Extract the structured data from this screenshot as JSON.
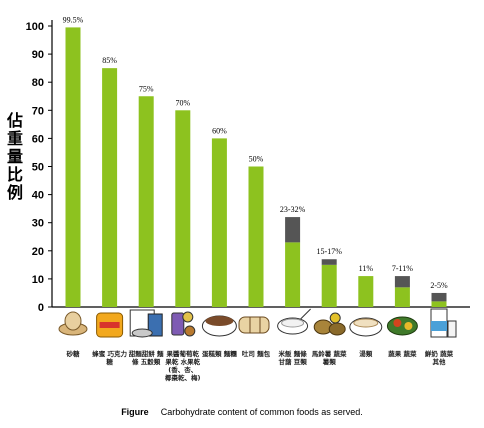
{
  "chart_data": {
    "type": "bar",
    "ylabel": "佔重量比例",
    "ylim": [
      0,
      100
    ],
    "yticks": [
      0,
      10,
      20,
      30,
      40,
      50,
      60,
      70,
      80,
      90,
      100
    ],
    "categories": [
      "砂糖",
      "蜂蜜 巧克力糖",
      "甜麵甜餅 麵條 五穀類",
      "果醬葡萄乾 果乾 水果乾 (香、杏、 椰棗乾、梅)",
      "蛋糕類 麵糰",
      "吐司 麵包",
      "米飯 麵條 甘藷 豆類",
      "馬鈴薯 蔬菜 薯類",
      "湯類",
      "蔬果 蔬菜",
      "鮮奶 蔬菜 其他"
    ],
    "series": [
      {
        "values": [
          99.5,
          85,
          75,
          70,
          60,
          50,
          23,
          15,
          11,
          7,
          2
        ]
      },
      {
        "values": [
          0,
          0,
          0,
          0,
          0,
          0,
          9,
          2,
          0,
          4,
          3
        ]
      }
    ],
    "value_labels": [
      "99.5%",
      "85%",
      "75%",
      "70%",
      "60%",
      "50%",
      "23-32%",
      "15-17%",
      "11%",
      "7-11%",
      "2-5%"
    ],
    "colors": {
      "bar": "#8dc21f",
      "range": "#555555"
    },
    "grid": false,
    "legend": "none"
  },
  "caption": {
    "figure": "Figure",
    "text": "Carbohydrate content of common foods as served."
  },
  "icons": [
    "sugar-icon",
    "honey-icon",
    "cereal-icon",
    "dried-fruit-icon",
    "cake-icon",
    "bread-icon",
    "rice-icon",
    "vegetables-icon",
    "soup-icon",
    "greens-icon",
    "milk-icon"
  ]
}
